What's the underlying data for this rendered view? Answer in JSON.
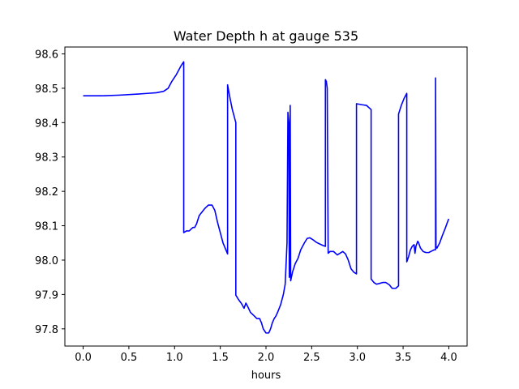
{
  "chart_data": {
    "type": "line",
    "title": "Water Depth h at gauge 535",
    "xlabel": "hours",
    "ylabel": "",
    "xlim": [
      -0.2,
      4.2
    ],
    "ylim": [
      97.75,
      98.62
    ],
    "xticks": [
      0.0,
      0.5,
      1.0,
      1.5,
      2.0,
      2.5,
      3.0,
      3.5,
      4.0
    ],
    "xtick_labels": [
      "0.0",
      "0.5",
      "1.0",
      "1.5",
      "2.0",
      "2.5",
      "3.0",
      "3.5",
      "4.0"
    ],
    "yticks": [
      97.8,
      97.9,
      98.0,
      98.1,
      98.2,
      98.3,
      98.4,
      98.5,
      98.6
    ],
    "ytick_labels": [
      "97.8",
      "97.9",
      "98.0",
      "98.1",
      "98.2",
      "98.3",
      "98.4",
      "98.5",
      "98.6"
    ],
    "grid": false,
    "series": [
      {
        "color": "#0000ff",
        "x": [
          0.0,
          0.2,
          0.4,
          0.6,
          0.7,
          0.8,
          0.88,
          0.93,
          0.97,
          1.02,
          1.07,
          1.1,
          1.1,
          1.13,
          1.16,
          1.18,
          1.2,
          1.22,
          1.24,
          1.27,
          1.3,
          1.33,
          1.37,
          1.41,
          1.44,
          1.47,
          1.5,
          1.53,
          1.58,
          1.58,
          1.6,
          1.63,
          1.67,
          1.67,
          1.7,
          1.72,
          1.74,
          1.76,
          1.78,
          1.8,
          1.83,
          1.87,
          1.9,
          1.93,
          1.95,
          1.97,
          2.0,
          2.03,
          2.05,
          2.07,
          2.09,
          2.11,
          2.13,
          2.16,
          2.19,
          2.21,
          2.23,
          2.24,
          2.24,
          2.25,
          2.255,
          2.265,
          2.27,
          2.27,
          2.29,
          2.32,
          2.35,
          2.38,
          2.42,
          2.45,
          2.48,
          2.51,
          2.55,
          2.58,
          2.62,
          2.65,
          2.65,
          2.66,
          2.66,
          2.67,
          2.68,
          2.68,
          2.7,
          2.74,
          2.78,
          2.81,
          2.84,
          2.87,
          2.9,
          2.93,
          2.96,
          2.99,
          2.99,
          3.05,
          3.1,
          3.15,
          3.15,
          3.18,
          3.21,
          3.24,
          3.28,
          3.31,
          3.35,
          3.38,
          3.42,
          3.45,
          3.45,
          3.48,
          3.51,
          3.54,
          3.54,
          3.56,
          3.58,
          3.6,
          3.62,
          3.63,
          3.64,
          3.66,
          3.67,
          3.69,
          3.72,
          3.75,
          3.78,
          3.81,
          3.84,
          3.855,
          3.855,
          3.86,
          3.87,
          3.9,
          3.93,
          3.96,
          3.99,
          4.0
        ],
        "y": [
          98.478,
          98.478,
          98.48,
          98.483,
          98.485,
          98.487,
          98.491,
          98.5,
          98.52,
          98.54,
          98.565,
          98.577,
          98.08,
          98.085,
          98.085,
          98.09,
          98.095,
          98.095,
          98.105,
          98.13,
          98.14,
          98.15,
          98.16,
          98.16,
          98.145,
          98.11,
          98.08,
          98.05,
          98.018,
          98.51,
          98.48,
          98.44,
          98.4,
          97.898,
          97.885,
          97.878,
          97.87,
          97.86,
          97.875,
          97.865,
          97.848,
          97.838,
          97.83,
          97.83,
          97.818,
          97.8,
          97.788,
          97.788,
          97.8,
          97.818,
          97.83,
          97.838,
          97.85,
          97.87,
          97.9,
          97.93,
          98.05,
          98.43,
          98.43,
          98.4,
          97.95,
          98.45,
          97.94,
          97.94,
          97.965,
          97.99,
          98.005,
          98.03,
          98.05,
          98.063,
          98.065,
          98.06,
          98.052,
          98.048,
          98.043,
          98.04,
          98.525,
          98.52,
          98.52,
          98.5,
          98.02,
          98.02,
          98.025,
          98.025,
          98.015,
          98.02,
          98.025,
          98.018,
          98.0,
          97.975,
          97.965,
          97.96,
          98.455,
          98.452,
          98.45,
          98.438,
          97.945,
          97.935,
          97.93,
          97.932,
          97.935,
          97.935,
          97.928,
          97.918,
          97.918,
          97.925,
          98.425,
          98.45,
          98.47,
          98.485,
          97.995,
          98.01,
          98.03,
          98.04,
          98.045,
          98.02,
          98.04,
          98.055,
          98.05,
          98.035,
          98.025,
          98.022,
          98.022,
          98.026,
          98.03,
          98.03,
          98.53,
          98.04,
          98.035,
          98.05,
          98.072,
          98.092,
          98.114,
          98.12
        ]
      }
    ]
  }
}
